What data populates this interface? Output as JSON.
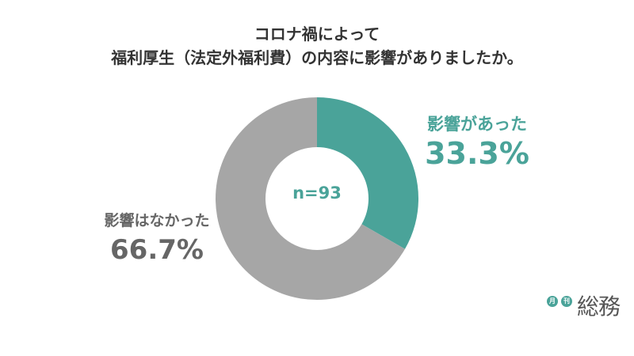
{
  "title_line1": "コロナ禍によって",
  "title_line2": "福利厚生（法定外福利費）の内容に影響がありましたか。",
  "chart_data": {
    "type": "pie",
    "subtype": "donut",
    "n_label": "n=93",
    "categories": [
      "影響があった",
      "影響はなかった"
    ],
    "values": [
      33.3,
      66.7
    ],
    "labels": [
      "33.3%",
      "66.7%"
    ],
    "colors": [
      "#4aa399",
      "#a6a6a6"
    ],
    "start": "12 o'clock",
    "direction": "clockwise"
  },
  "logo": {
    "badge1": "月",
    "badge2": "刊",
    "name": "総務"
  }
}
